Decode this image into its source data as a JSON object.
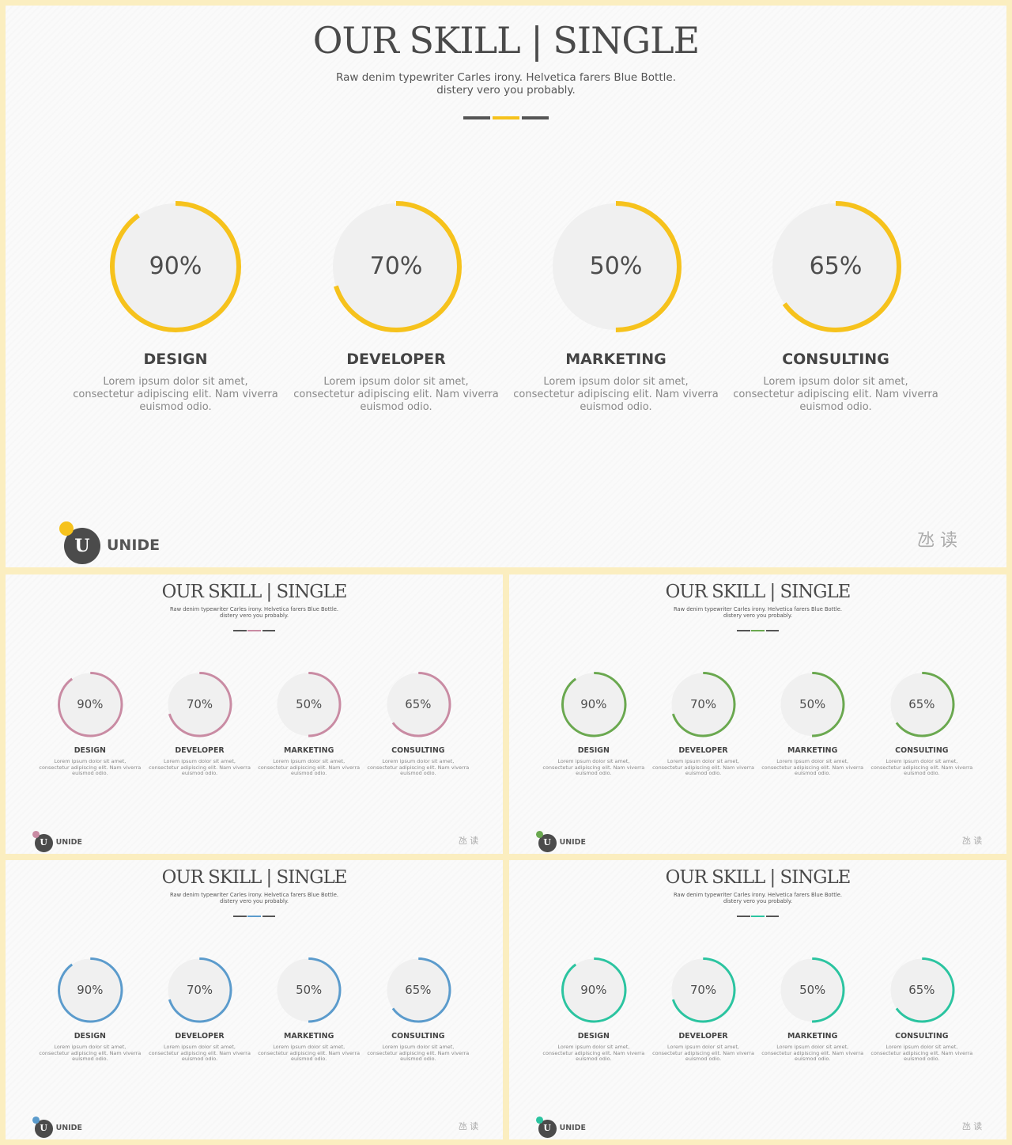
{
  "slides": [
    {
      "accent": "#f6c21c",
      "title": "OUR SKILL | SINGLE",
      "subtitle": "Raw denim typewriter Carles irony. Helvetica farers Blue Bottle.\ndistery vero you probably.",
      "skills": [
        {
          "percent_text": "90%",
          "value": 0.9,
          "label": "DESIGN",
          "desc": "Lorem ipsum dolor sit amet,\nconsectetur adipiscing elit. Nam viverra\neuismod odio."
        },
        {
          "percent_text": "70%",
          "value": 0.7,
          "label": "DEVELOPER",
          "desc": "Lorem ipsum dolor sit amet,\nconsectetur adipiscing elit. Nam viverra\neuismod odio."
        },
        {
          "percent_text": "50%",
          "value": 0.5,
          "label": "MARKETING",
          "desc": "Lorem ipsum dolor sit amet,\nconsectetur adipiscing elit. Nam viverra\neuismod odio."
        },
        {
          "percent_text": "65%",
          "value": 0.65,
          "label": "CONSULTING",
          "desc": "Lorem ipsum dolor sit amet,\nconsectetur adipiscing elit. Nam viverra\neuismod odio."
        }
      ],
      "logo_letter": "U",
      "brand": "UNIDE",
      "cn_text": "氹 读"
    },
    {
      "accent": "#c98ba3",
      "title": "OUR SKILL | SINGLE",
      "subtitle": "Raw denim typewriter Carles irony. Helvetica farers Blue Bottle.\ndistery vero you probably.",
      "skills": [
        {
          "percent_text": "90%",
          "value": 0.9,
          "label": "DESIGN",
          "desc": "Lorem ipsum dolor sit amet,\nconsectetur adipiscing elit. Nam viverra\neuismod odio."
        },
        {
          "percent_text": "70%",
          "value": 0.7,
          "label": "DEVELOPER",
          "desc": "Lorem ipsum dolor sit amet,\nconsectetur adipiscing elit. Nam viverra\neuismod odio."
        },
        {
          "percent_text": "50%",
          "value": 0.5,
          "label": "MARKETING",
          "desc": "Lorem ipsum dolor sit amet,\nconsectetur adipiscing elit. Nam viverra\neuismod odio."
        },
        {
          "percent_text": "65%",
          "value": 0.65,
          "label": "CONSULTING",
          "desc": "Lorem ipsum dolor sit amet,\nconsectetur adipiscing elit. Nam viverra\neuismod odio."
        }
      ],
      "logo_letter": "U",
      "brand": "UNIDE",
      "cn_text": "氹 读"
    },
    {
      "accent": "#6aa84f",
      "title": "OUR SKILL | SINGLE",
      "subtitle": "Raw denim typewriter Carles irony. Helvetica farers Blue Bottle.\ndistery vero you probably.",
      "skills": [
        {
          "percent_text": "90%",
          "value": 0.9,
          "label": "DESIGN",
          "desc": "Lorem ipsum dolor sit amet,\nconsectetur adipiscing elit. Nam viverra\neuismod odio."
        },
        {
          "percent_text": "70%",
          "value": 0.7,
          "label": "DEVELOPER",
          "desc": "Lorem ipsum dolor sit amet,\nconsectetur adipiscing elit. Nam viverra\neuismod odio."
        },
        {
          "percent_text": "50%",
          "value": 0.5,
          "label": "MARKETING",
          "desc": "Lorem ipsum dolor sit amet,\nconsectetur adipiscing elit. Nam viverra\neuismod odio."
        },
        {
          "percent_text": "65%",
          "value": 0.65,
          "label": "CONSULTING",
          "desc": "Lorem ipsum dolor sit amet,\nconsectetur adipiscing elit. Nam viverra\neuismod odio."
        }
      ],
      "logo_letter": "U",
      "brand": "UNIDE",
      "cn_text": "氹 读"
    },
    {
      "accent": "#5b9bcc",
      "title": "OUR SKILL | SINGLE",
      "subtitle": "Raw denim typewriter Carles irony. Helvetica farers Blue Bottle.\ndistery vero you probably.",
      "skills": [
        {
          "percent_text": "90%",
          "value": 0.9,
          "label": "DESIGN",
          "desc": "Lorem ipsum dolor sit amet,\nconsectetur adipiscing elit. Nam viverra\neuismod odio."
        },
        {
          "percent_text": "70%",
          "value": 0.7,
          "label": "DEVELOPER",
          "desc": "Lorem ipsum dolor sit amet,\nconsectetur adipiscing elit. Nam viverra\neuismod odio."
        },
        {
          "percent_text": "50%",
          "value": 0.5,
          "label": "MARKETING",
          "desc": "Lorem ipsum dolor sit amet,\nconsectetur adipiscing elit. Nam viverra\neuismod odio."
        },
        {
          "percent_text": "65%",
          "value": 0.65,
          "label": "CONSULTING",
          "desc": "Lorem ipsum dolor sit amet,\nconsectetur adipiscing elit. Nam viverra\neuismod odio."
        }
      ],
      "logo_letter": "U",
      "brand": "UNIDE",
      "cn_text": "氹 读"
    },
    {
      "accent": "#2bc4a0",
      "title": "OUR SKILL | SINGLE",
      "subtitle": "Raw denim typewriter Carles irony. Helvetica farers Blue Bottle.\ndistery vero you probably.",
      "skills": [
        {
          "percent_text": "90%",
          "value": 0.9,
          "label": "DESIGN",
          "desc": "Lorem ipsum dolor sit amet,\nconsectetur adipiscing elit. Nam viverra\neuismod odio."
        },
        {
          "percent_text": "70%",
          "value": 0.7,
          "label": "DEVELOPER",
          "desc": "Lorem ipsum dolor sit amet,\nconsectetur adipiscing elit. Nam viverra\neuismod odio."
        },
        {
          "percent_text": "50%",
          "value": 0.5,
          "label": "MARKETING",
          "desc": "Lorem ipsum dolor sit amet,\nconsectetur adipiscing elit. Nam viverra\neuismod odio."
        },
        {
          "percent_text": "65%",
          "value": 0.65,
          "label": "CONSULTING",
          "desc": "Lorem ipsum dolor sit amet,\nconsectetur adipiscing elit. Nam viverra\neuismod odio."
        }
      ],
      "logo_letter": "U",
      "brand": "UNIDE",
      "cn_text": "氹 读"
    }
  ],
  "colors": {
    "frame": "#fbeec0",
    "slide_bg": "#fafafa",
    "ring_bg": "#f0f0f0",
    "dark_bar": "#555555"
  }
}
